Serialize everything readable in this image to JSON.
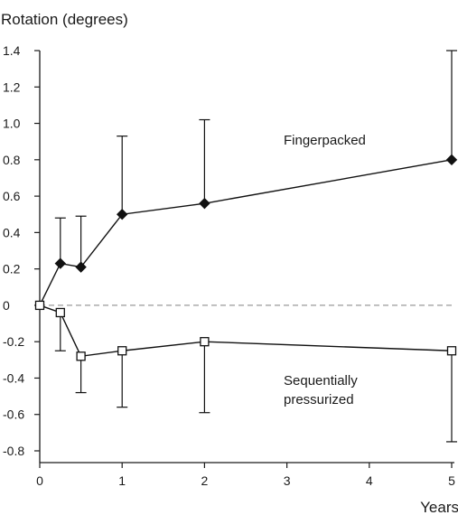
{
  "chart_data": {
    "type": "line",
    "ylabel": "Rotation (degrees)",
    "xlabel": "Years",
    "xlim": [
      0,
      5
    ],
    "ylim": [
      -0.8,
      1.4
    ],
    "xticks": [
      0,
      1,
      2,
      3,
      4,
      5
    ],
    "yticks": [
      1.4,
      1.2,
      1.0,
      0.8,
      0.6,
      0.4,
      0.2,
      0,
      -0.2,
      -0.4,
      -0.6,
      -0.8
    ],
    "ytick_labels": [
      "1.4",
      "1.2",
      "1.0",
      "0.8",
      "0.6",
      "0.4",
      "0.2",
      "0",
      "-0.2",
      "-0.4",
      "-0.6",
      "-0.8"
    ],
    "reference_line": {
      "y": 0,
      "style": "dashed",
      "color": "#9a9a9a"
    },
    "grid": false,
    "series": [
      {
        "name": "Fingerpacked",
        "marker": "filled-diamond",
        "color": "#111111",
        "x": [
          0,
          0.25,
          0.5,
          1,
          2,
          5
        ],
        "y": [
          0,
          0.23,
          0.21,
          0.5,
          0.56,
          0.8
        ],
        "error_upper": [
          0,
          0.48,
          0.49,
          0.93,
          1.02,
          1.4
        ]
      },
      {
        "name": "Sequentially pressurized",
        "name_lines": [
          "Sequentially",
          "pressurized"
        ],
        "marker": "open-square",
        "color": "#111111",
        "x": [
          0,
          0.25,
          0.5,
          1,
          2,
          5
        ],
        "y": [
          0,
          -0.04,
          -0.28,
          -0.25,
          -0.2,
          -0.25
        ],
        "error_lower": [
          0,
          -0.25,
          -0.48,
          -0.56,
          -0.59,
          -0.75
        ]
      }
    ]
  }
}
